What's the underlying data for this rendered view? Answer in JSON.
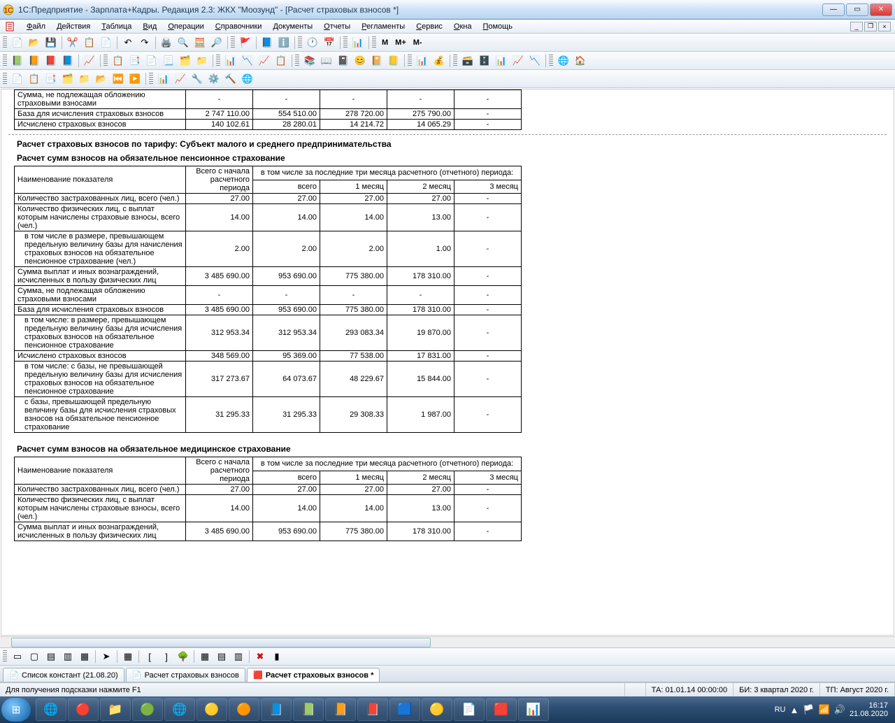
{
  "title": "1С:Предприятие - Зарплата+Кадры. Редакция 2.3: ЖКХ \"Моозунд\" - [Расчет страховых взносов *]",
  "menu": [
    "Файл",
    "Действия",
    "Таблица",
    "Вид",
    "Операции",
    "Справочники",
    "Документы",
    "Отчеты",
    "Регламенты",
    "Сервис",
    "Окна",
    "Помощь"
  ],
  "toolbar_text": [
    "M",
    "M+",
    "M-"
  ],
  "top_fragment": {
    "rows": [
      {
        "label": "Сумма, не подлежащая обложению страховыми взносами",
        "v": [
          "-",
          "-",
          "-",
          "-",
          "-"
        ]
      },
      {
        "label": "База для исчисления страховых взносов",
        "v": [
          "2 747 110.00",
          "554 510.00",
          "278 720.00",
          "275 790.00",
          "-"
        ]
      },
      {
        "label": "Исчислено страховых взносов",
        "v": [
          "140 102.61",
          "28 280.01",
          "14 214.72",
          "14 065.29",
          "-"
        ]
      }
    ]
  },
  "section1_title": "Расчет страховых взносов по тарифу: Субъект малого и среднего предпринимательства",
  "section1a_title": "Расчет сумм взносов на обязательное пенсионное страхование",
  "headers": {
    "h1": "Наименование показателя",
    "h2": "Всего с начала расчетного периода",
    "h3": "в том числе за последние три месяца расчетного (отчетного) периода:",
    "sub": [
      "всего",
      "1 месяц",
      "2 месяц",
      "3 месяц"
    ]
  },
  "table1": [
    {
      "label": "Количество застрахованных лиц, всего (чел.)",
      "indent": false,
      "v": [
        "27.00",
        "27.00",
        "27.00",
        "27.00",
        "-"
      ]
    },
    {
      "label": "Количество физических лиц, с выплат которым начислены страховые взносы, всего (чел.)",
      "indent": false,
      "v": [
        "14.00",
        "14.00",
        "14.00",
        "13.00",
        "-"
      ]
    },
    {
      "label": "в том числе в размере, превышающем предельную величину базы для начисления страховых взносов на обязательное пенсионное страхование (чел.)",
      "indent": true,
      "v": [
        "2.00",
        "2.00",
        "2.00",
        "1.00",
        "-"
      ]
    },
    {
      "label": "Сумма выплат и иных вознаграждений, исчисленных в пользу физических лиц",
      "indent": false,
      "v": [
        "3 485 690.00",
        "953 690.00",
        "775 380.00",
        "178 310.00",
        "-"
      ]
    },
    {
      "label": "Сумма, не подлежащая обложению страховыми взносами",
      "indent": false,
      "v": [
        "-",
        "-",
        "-",
        "-",
        "-"
      ]
    },
    {
      "label": "База для исчисления страховых взносов",
      "indent": false,
      "v": [
        "3 485 690.00",
        "953 690.00",
        "775 380.00",
        "178 310.00",
        "-"
      ]
    },
    {
      "label": "в том числе:\nв размере, превышающем предельную величину базы для исчисления страховых взносов на обязательное пенсионное страхование",
      "indent": true,
      "v": [
        "312 953.34",
        "312 953.34",
        "293 083.34",
        "19 870.00",
        "-"
      ]
    },
    {
      "label": "Исчислено страховых взносов",
      "indent": false,
      "v": [
        "348 569.00",
        "95 369.00",
        "77 538.00",
        "17 831.00",
        "-"
      ]
    },
    {
      "label": "в том числе:\nс базы, не превышающей предельную величину базы для исчисления страховых взносов на обязательное пенсионное страхование",
      "indent": true,
      "v": [
        "317 273.67",
        "64 073.67",
        "48 229.67",
        "15 844.00",
        "-"
      ]
    },
    {
      "label": "с базы, превышающей предельную величину базы для исчисления страховых взносов на обязательное пенсионное страхование",
      "indent": true,
      "v": [
        "31 295.33",
        "31 295.33",
        "29 308.33",
        "1 987.00",
        "-"
      ]
    }
  ],
  "section1b_title": "Расчет сумм взносов на обязательное медицинское страхование",
  "table2": [
    {
      "label": "Количество застрахованных лиц, всего (чел.)",
      "indent": false,
      "v": [
        "27.00",
        "27.00",
        "27.00",
        "27.00",
        "-"
      ]
    },
    {
      "label": "Количество физических лиц, с выплат которым начислены страховые взносы, всего (чел.)",
      "indent": false,
      "v": [
        "14.00",
        "14.00",
        "14.00",
        "13.00",
        "-"
      ]
    },
    {
      "label": "Сумма выплат и иных вознаграждений, исчисленных в пользу физических лиц",
      "indent": false,
      "v": [
        "3 485 690.00",
        "953 690.00",
        "775 380.00",
        "178 310.00",
        "-"
      ]
    }
  ],
  "tabs": [
    {
      "label": "Список констант (21.08.20)",
      "active": false
    },
    {
      "label": "Расчет страховых взносов",
      "active": false
    },
    {
      "label": "Расчет страховых взносов *",
      "active": true
    }
  ],
  "status": {
    "hint": "Для получения подсказки нажмите F1",
    "ta": "ТА: 01.01.14  00:00:00",
    "bi": "БИ: 3 квартал 2020 г.",
    "tp": "ТП: Август 2020 г."
  },
  "tray": {
    "lang": "RU",
    "time": "16:17",
    "date": "21.08.2020"
  }
}
